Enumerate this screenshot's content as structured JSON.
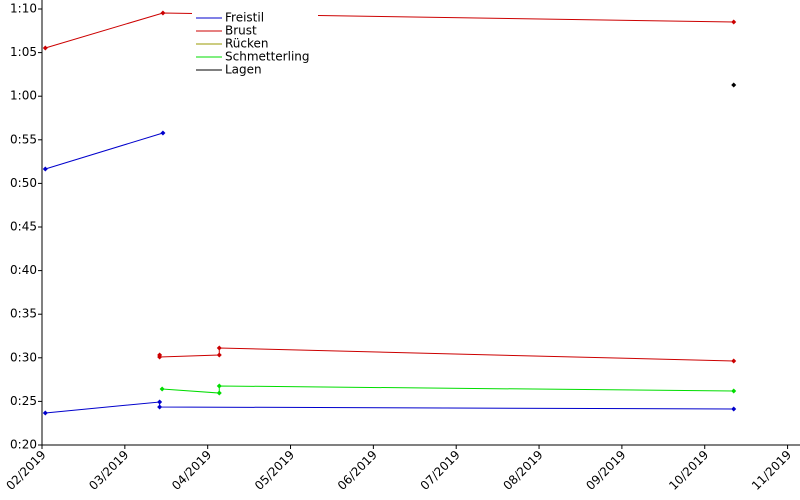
{
  "chart_data": {
    "type": "line",
    "xlim": [
      2,
      11.15
    ],
    "xticks": [
      {
        "value": 2,
        "label": "02/2019"
      },
      {
        "value": 3,
        "label": "03/2019"
      },
      {
        "value": 4,
        "label": "04/2019"
      },
      {
        "value": 5,
        "label": "05/2019"
      },
      {
        "value": 6,
        "label": "06/2019"
      },
      {
        "value": 7,
        "label": "07/2019"
      },
      {
        "value": 8,
        "label": "08/2019"
      },
      {
        "value": 9,
        "label": "09/2019"
      },
      {
        "value": 10,
        "label": "10/2019"
      },
      {
        "value": 11,
        "label": "11/2019"
      }
    ],
    "ylim": [
      20,
      70
    ],
    "yticks": [
      {
        "value": 20,
        "label": "0:20"
      },
      {
        "value": 25,
        "label": "0:25"
      },
      {
        "value": 30,
        "label": "0:30"
      },
      {
        "value": 35,
        "label": "0:35"
      },
      {
        "value": 40,
        "label": "0:40"
      },
      {
        "value": 45,
        "label": "0:45"
      },
      {
        "value": 50,
        "label": "0:50"
      },
      {
        "value": 55,
        "label": "0:55"
      },
      {
        "value": 60,
        "label": "1:00"
      },
      {
        "value": 65,
        "label": "1:05"
      },
      {
        "value": 70,
        "label": "1:10"
      }
    ],
    "legend": "top-left",
    "series": [
      {
        "name": "Freistil",
        "color": "#0000cc",
        "x": [
          2.04,
          3.46,
          null,
          2.04,
          3.42,
          3.42,
          10.35
        ],
        "values": [
          51.65,
          55.78,
          null,
          23.67,
          24.93,
          24.36,
          24.13
        ]
      },
      {
        "name": "Brust",
        "color": "#cc0000",
        "x": [
          2.04,
          3.46,
          10.35,
          null,
          3.42,
          3.42,
          4.14,
          4.14,
          10.35
        ],
        "values": [
          65.53,
          69.54,
          68.51,
          null,
          30.32,
          30.09,
          30.32,
          31.12,
          29.63
        ]
      },
      {
        "name": "Rücken",
        "color": "#999900",
        "x": [],
        "values": []
      },
      {
        "name": "Schmetterling",
        "color": "#00dd00",
        "x": [
          3.45,
          4.14,
          4.14,
          10.35
        ],
        "values": [
          26.42,
          25.96,
          26.77,
          26.19
        ]
      },
      {
        "name": "Lagen",
        "color": "#000000",
        "x": [
          10.35
        ],
        "values": [
          61.28
        ]
      }
    ]
  }
}
